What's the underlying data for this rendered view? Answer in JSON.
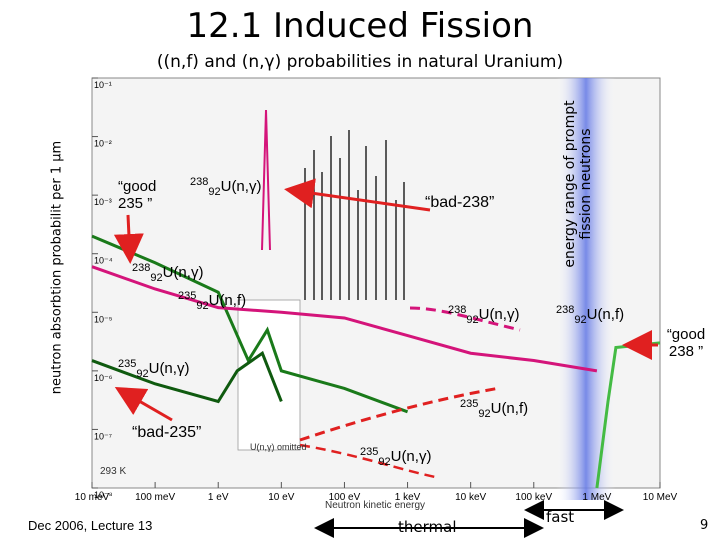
{
  "header": {
    "title": "12.1 Induced Fission",
    "subtitle": "((n,f) and (n,γ) probabilities in natural Uranium)"
  },
  "footer": {
    "lecture": "Dec 2006, Lecture 13",
    "page_number": "9"
  },
  "labels": {
    "good235": "“good 235 ”",
    "good238": "“good 238 ”",
    "bad238": "“bad-238”",
    "bad235": "“bad-235”",
    "energy_range": "energy range of prompt fission neutrons",
    "thermal": "thermal",
    "fast": "fast",
    "iso238": "238",
    "iso235": "235",
    "z92": "92",
    "ng": "U(n,γ)",
    "nf": "U(n,f)",
    "omitted": "U(n,γ) omitted",
    "temp": "293 K"
  },
  "colors": {
    "green": "#1a7a1a",
    "light_green": "#44bb44",
    "magenta": "#d4147a",
    "red": "#e02020",
    "dark_green": "#0f5a0f",
    "band_blue": "#6a7ee6"
  },
  "chart_data": {
    "type": "line",
    "xscale": "log",
    "yscale": "log",
    "xlim_eV": [
      0.01,
      10000000
    ],
    "ylim": [
      1e-08,
      0.1
    ],
    "xlabel": "Neutron kinetic energy",
    "ylabel": "neutron absorbtion probabilit per 1 μm",
    "x_ticks": [
      "10 meV",
      "100 meV",
      "1 eV",
      "10 eV",
      "100 eV",
      "1 keV",
      "10 keV",
      "100 keV",
      "1 MeV",
      "10 MeV"
    ],
    "y_ticks": [
      "10⁻¹",
      "10⁻²",
      "10⁻³",
      "10⁻⁴",
      "10⁻⁵",
      "10⁻⁶",
      "10⁻⁷",
      "10⁻⁸"
    ],
    "series": [
      {
        "name": "235U(n,f)",
        "color": "#1a7a1a",
        "x": [
          0.01,
          0.1,
          1,
          3,
          6,
          10,
          100,
          1000
        ],
        "y": [
          0.0002,
          7e-05,
          2.2e-05,
          1.5e-06,
          5e-06,
          1e-06,
          5e-07,
          2e-07
        ]
      },
      {
        "name": "235U(n,γ)",
        "color": "#0f5a0f",
        "x": [
          0.01,
          0.1,
          1,
          2,
          5,
          10
        ],
        "y": [
          1.5e-06,
          6e-07,
          3e-07,
          1e-06,
          2e-06,
          3e-07
        ]
      },
      {
        "name": "238U(n,γ)",
        "color": "#d4147a",
        "x": [
          0.01,
          0.1,
          1,
          10,
          100,
          1000,
          10000,
          100000,
          1000000
        ],
        "y": [
          6e-05,
          2.5e-05,
          1.2e-05,
          1e-05,
          8e-06,
          4e-06,
          2e-06,
          1.5e-06,
          1e-06
        ]
      },
      {
        "name": "238U(n,f)",
        "color": "#44bb44",
        "x": [
          1000000,
          1500000,
          2000000,
          10000000
        ],
        "y": [
          1e-08,
          3e-07,
          2.5e-06,
          3e-06
        ]
      }
    ],
    "annotations": [
      "thermal",
      "fast",
      "293 K",
      "U(n,γ) omitted"
    ]
  }
}
